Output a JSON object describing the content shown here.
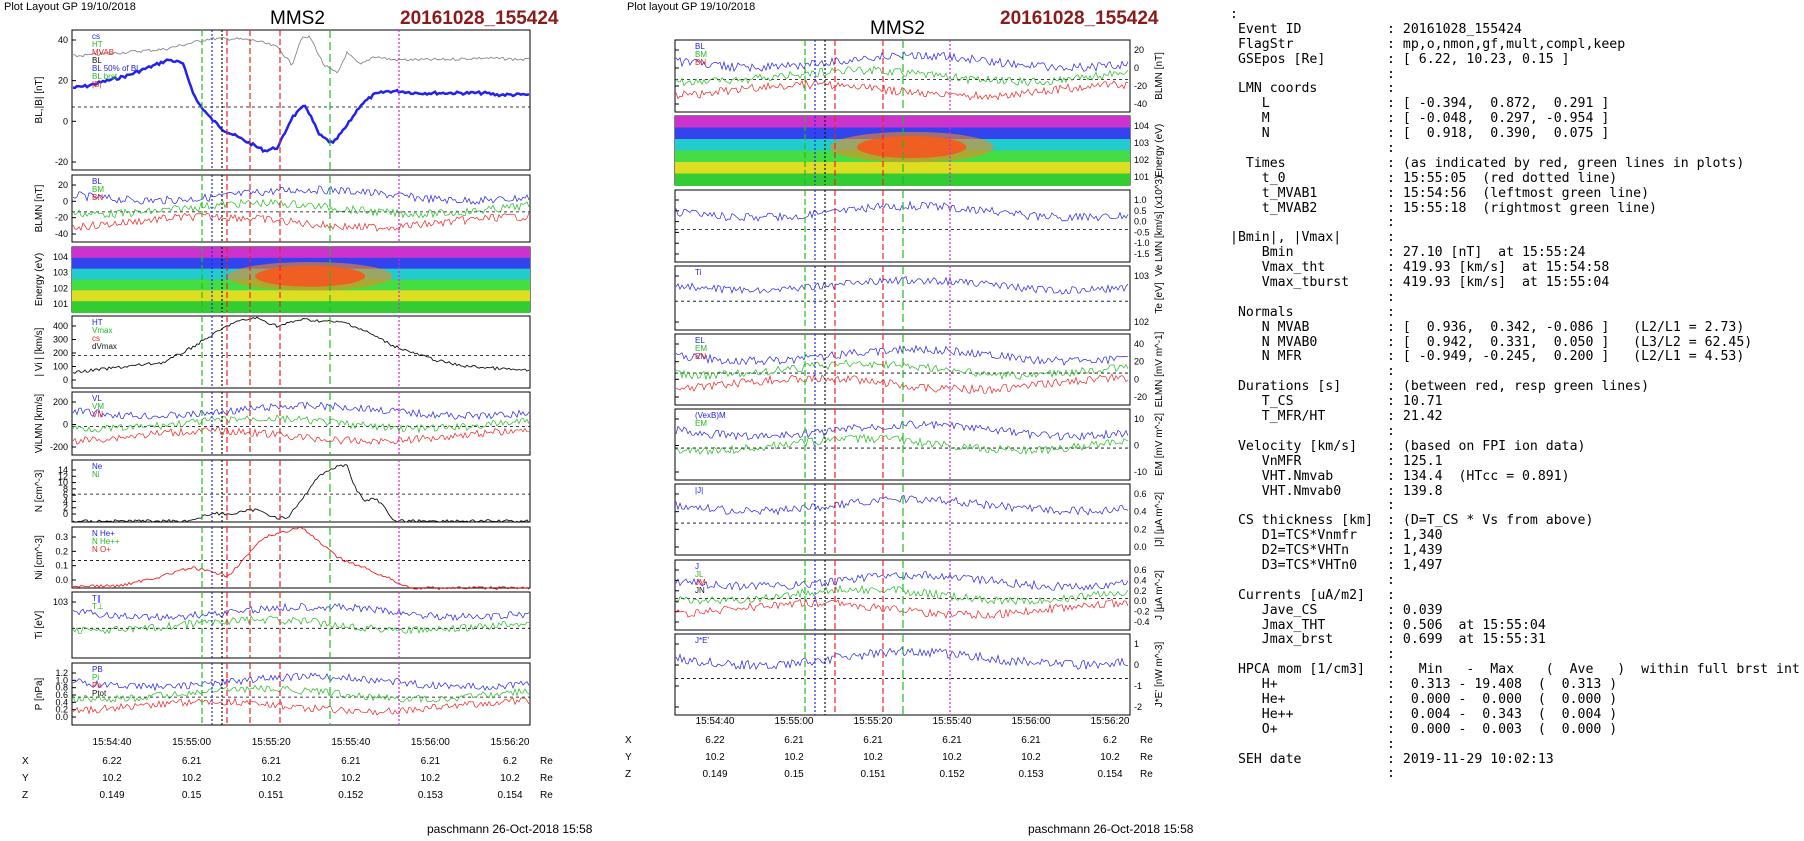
{
  "left_page": {
    "header": "Plot Layout GP 19/10/2018",
    "title": "MMS2",
    "event": "20161028_155424",
    "credit": "paschmann 26-Oct-2018 15:58"
  },
  "mid_page": {
    "header": "Plot layout GP 19/10/2018",
    "title": "MMS2",
    "event": "20161028_155424",
    "credit": "paschmann 26-Oct-2018 15:58"
  },
  "colors": {
    "blue": "#2222ee",
    "green": "#22bb22",
    "red": "#ee2222",
    "magenta": "#dd22dd",
    "black": "#111111",
    "gray": "#888888",
    "event_red": "#8b1a1a"
  },
  "time_ticks": [
    "15:54:40",
    "15:55:00",
    "15:55:20",
    "15:55:40",
    "15:56:00",
    "15:56:20"
  ],
  "positions": {
    "unit": "Re",
    "rows": [
      {
        "label": "X",
        "values": [
          "6.22",
          "6.21",
          "6.21",
          "6.21",
          "6.21",
          "6.2"
        ]
      },
      {
        "label": "Y",
        "values": [
          "10.2",
          "10.2",
          "10.2",
          "10.2",
          "10.2",
          "10.2"
        ]
      },
      {
        "label": "Z",
        "values": [
          "0.149",
          "0.15",
          "0.151",
          "0.152",
          "0.153",
          "0.154"
        ]
      }
    ]
  },
  "chart_data": [
    {
      "type": "line",
      "panel": "left-1",
      "ylabel": "BL,|B| [nT]",
      "ylim": [
        -35,
        45
      ],
      "yticks": [
        "40",
        "20",
        "0",
        "-20"
      ],
      "legend": [
        "cs",
        "HT",
        "MVAB",
        "BL",
        "BL 50% of BL",
        "BL brst",
        "|B|"
      ],
      "series": [
        {
          "name": "BL brst",
          "color": "blue",
          "x": [
            0,
            0.03,
            0.06,
            0.09,
            0.12,
            0.15,
            0.18,
            0.21,
            0.24,
            0.27,
            0.3,
            0.33,
            0.36,
            0.39,
            0.42,
            0.45,
            0.48,
            0.51,
            0.54,
            0.57,
            0.6,
            0.63,
            0.66,
            0.69,
            0.72,
            0.75,
            0.78,
            0.81,
            0.84,
            0.87,
            0.9,
            0.93,
            0.96,
            1.0
          ],
          "y": [
            12,
            13,
            15,
            17,
            19,
            22,
            25,
            28,
            26,
            5,
            -5,
            -12,
            -16,
            -20,
            -24,
            -22,
            -5,
            2,
            -15,
            -20,
            -10,
            2,
            8,
            10,
            10,
            9,
            9,
            9,
            9,
            9,
            9,
            8,
            8,
            8
          ]
        },
        {
          "name": "|B|",
          "color": "gray",
          "x": [
            0,
            0.1,
            0.2,
            0.3,
            0.35,
            0.4,
            0.45,
            0.48,
            0.5,
            0.52,
            0.55,
            0.58,
            0.6,
            0.63,
            0.66,
            0.7,
            0.8,
            0.9,
            1.0
          ],
          "y": [
            30,
            32,
            34,
            40,
            40,
            39,
            35,
            25,
            40,
            41,
            25,
            20,
            32,
            25,
            30,
            28,
            28,
            29,
            28
          ]
        }
      ]
    },
    {
      "type": "line",
      "panel": "left-2",
      "ylabel": "BLMN [nT]",
      "ylim": [
        -45,
        35
      ],
      "yticks": [
        "20",
        "0",
        "-20",
        "-40"
      ],
      "legend": [
        "BL",
        "BM",
        "BN"
      ]
    },
    {
      "type": "heatmap",
      "panel": "left-3",
      "ylabel": "Energy (eV)",
      "yticks": [
        "10^4",
        "10^3",
        "10^2",
        "10^1"
      ]
    },
    {
      "type": "line",
      "panel": "left-4",
      "ylabel": "| Vi | [km/s]",
      "ylim": [
        0,
        420
      ],
      "yticks": [
        "400",
        "300",
        "200",
        "100",
        "0"
      ],
      "legend": [
        "HT",
        "Vmax",
        "cs",
        "dVmax"
      ],
      "series": [
        {
          "name": "|Vi|",
          "color": "black",
          "x": [
            0,
            0.1,
            0.2,
            0.25,
            0.3,
            0.35,
            0.4,
            0.45,
            0.5,
            0.55,
            0.6,
            0.65,
            0.7,
            0.75,
            0.8,
            0.85,
            0.9,
            0.95,
            1.0
          ],
          "y": [
            90,
            120,
            150,
            220,
            300,
            380,
            410,
            360,
            400,
            390,
            380,
            320,
            250,
            200,
            160,
            130,
            120,
            110,
            100
          ]
        }
      ]
    },
    {
      "type": "line",
      "panel": "left-5",
      "ylabel": "ViLMN [km/s]",
      "ylim": [
        -230,
        280
      ],
      "yticks": [
        "200",
        "0",
        "-200"
      ],
      "legend": [
        "VL",
        "VM",
        "VN"
      ]
    },
    {
      "type": "line",
      "panel": "left-6",
      "ylabel": "N [cm^-3]",
      "ylim": [
        0,
        15
      ],
      "yticks": [
        "14",
        "12",
        "10",
        "8",
        "6",
        "4",
        "2",
        "0"
      ],
      "legend": [
        "Ne",
        "Ni"
      ],
      "series": [
        {
          "name": "Ni",
          "color": "black",
          "x": [
            0,
            0.25,
            0.28,
            0.3,
            0.35,
            0.4,
            0.45,
            0.47,
            0.5,
            0.53,
            0.55,
            0.57,
            0.6,
            0.62,
            0.64,
            0.66,
            0.68,
            0.7,
            1.0
          ],
          "y": [
            0.2,
            0.3,
            1,
            2,
            2,
            3,
            1,
            1,
            5,
            10,
            12,
            13,
            14,
            8,
            5,
            6,
            4,
            0.3,
            0.2
          ]
        }
      ]
    },
    {
      "type": "line",
      "panel": "left-7",
      "ylabel": "Ni [cm^-3]",
      "ylim": [
        0,
        0.3
      ],
      "yticks": [
        "0.3",
        "0.2",
        "0.1",
        "0.0"
      ],
      "legend": [
        "N He+",
        "N He++",
        "N O+"
      ],
      "series": [
        {
          "name": "N He++",
          "color": "red",
          "x": [
            0.1,
            0.18,
            0.26,
            0.34,
            0.42,
            0.5,
            0.58,
            0.66,
            0.74
          ],
          "y": [
            0.01,
            0.05,
            0.1,
            0.06,
            0.25,
            0.3,
            0.15,
            0.08,
            0.0
          ]
        }
      ]
    },
    {
      "type": "line",
      "panel": "left-8",
      "ylabel": "Ti [eV]",
      "yticks": [
        "10^3"
      ],
      "legend": [
        "T∥",
        "T⊥"
      ]
    },
    {
      "type": "line",
      "panel": "left-9",
      "ylabel": "P [nPa]",
      "ylim": [
        0,
        1.2
      ],
      "yticks": [
        "1.2",
        "1.0",
        "0.8",
        "0.6",
        "0.4",
        "0.2",
        "0.0"
      ],
      "legend": [
        "PB",
        "Pi",
        "Pe",
        "Ptot"
      ]
    },
    {
      "type": "line",
      "panel": "mid-1",
      "ylabel": "BLMN [nT]",
      "yticks": [
        "20",
        "0",
        "-20",
        "-40"
      ],
      "legend": [
        "BL",
        "BM",
        "BN"
      ]
    },
    {
      "type": "heatmap",
      "panel": "mid-2",
      "ylabel": "Energy (eV)",
      "yticks": [
        "10^4",
        "10^3",
        "10^2",
        "10^1"
      ]
    },
    {
      "type": "line",
      "panel": "mid-3",
      "ylabel": "Ve LMN [km/s] (x10^3)",
      "yticks": [
        "1.0",
        "0.5",
        "0.0",
        "-0.5",
        "-1.0",
        "-1.5"
      ]
    },
    {
      "type": "line",
      "panel": "mid-4",
      "ylabel": "Te [eV]",
      "yticks": [
        "10^3",
        "10^2"
      ],
      "legend": [
        "Ti"
      ]
    },
    {
      "type": "line",
      "panel": "mid-5",
      "ylabel": "ELMN [mV m^-1]",
      "yticks": [
        "40",
        "20",
        "0",
        "-20"
      ],
      "legend": [
        "EL",
        "EM",
        "EN"
      ]
    },
    {
      "type": "line",
      "panel": "mid-6",
      "ylabel": "EM [mV m^-2]",
      "yticks": [
        "10",
        "0",
        "-10"
      ],
      "legend": [
        "(VexB)M",
        "EM"
      ]
    },
    {
      "type": "line",
      "panel": "mid-7",
      "ylabel": "|J| [μA m^-2]",
      "yticks": [
        "0.6",
        "0.4",
        "0.2",
        "0.0"
      ],
      "legend": [
        "|J|"
      ]
    },
    {
      "type": "line",
      "panel": "mid-8",
      "ylabel": "J [μA m^-2]",
      "yticks": [
        "0.6",
        "0.4",
        "0.2",
        "0.0",
        "-0.2",
        "-0.4"
      ],
      "legend": [
        "J",
        "JL",
        "JM",
        "JN"
      ]
    },
    {
      "type": "line",
      "panel": "mid-9",
      "ylabel": "J*E' [nW m^-3]",
      "yticks": [
        "1",
        "0",
        "-1",
        "-2"
      ],
      "legend": [
        "J*E'"
      ]
    }
  ],
  "info": {
    "lines": [
      {
        "lab": ":",
        "val": ""
      },
      {
        "lab": " Event ID",
        "val": ": 20161028_155424"
      },
      {
        "lab": " FlagStr",
        "val": ": mp,o,nmon,gf,mult,compl,keep"
      },
      {
        "lab": " GSEpos [Re]",
        "val": ": [ 6.22, 10.23, 0.15 ]"
      },
      {
        "lab": "",
        "val": ":"
      },
      {
        "lab": " LMN coords",
        "val": ":"
      },
      {
        "lab": "    L",
        "val": ": [ -0.394,  0.872,  0.291 ]"
      },
      {
        "lab": "    M",
        "val": ": [ -0.048,  0.297, -0.954 ]"
      },
      {
        "lab": "    N",
        "val": ": [  0.918,  0.390,  0.075 ]"
      },
      {
        "lab": "",
        "val": ":"
      },
      {
        "lab": "  Times",
        "val": ": (as indicated by red, green lines in plots)"
      },
      {
        "lab": "    t_0",
        "val": ": 15:55:05  (red dotted line)"
      },
      {
        "lab": "    t_MVAB1",
        "val": ": 15:54:56  (leftmost green line)"
      },
      {
        "lab": "    t_MVAB2",
        "val": ": 15:55:18  (rightmost green line)"
      },
      {
        "lab": "",
        "val": ":"
      },
      {
        "lab": "|Bmin|, |Vmax|",
        "val": ":"
      },
      {
        "lab": "    Bmin",
        "val": ": 27.10 [nT]  at 15:55:24"
      },
      {
        "lab": "    Vmax_tht",
        "val": ": 419.93 [km/s]  at 15:54:58"
      },
      {
        "lab": "    Vmax_tburst",
        "val": ": 419.93 [km/s]  at 15:55:04"
      },
      {
        "lab": "",
        "val": ":"
      },
      {
        "lab": " Normals",
        "val": ":"
      },
      {
        "lab": "    N MVAB",
        "val": ": [  0.936,  0.342, -0.086 ]   (L2/L1 = 2.73)"
      },
      {
        "lab": "    N MVAB0",
        "val": ": [  0.942,  0.331,  0.050 ]   (L3/L2 = 62.45)"
      },
      {
        "lab": "    N MFR",
        "val": ": [ -0.949, -0.245,  0.200 ]   (L2/L1 = 4.53)"
      },
      {
        "lab": "",
        "val": ":"
      },
      {
        "lab": " Durations [s]",
        "val": ": (between red, resp green lines)"
      },
      {
        "lab": "    T_CS",
        "val": ": 10.71"
      },
      {
        "lab": "    T_MFR/HT",
        "val": ": 21.42"
      },
      {
        "lab": "",
        "val": ":"
      },
      {
        "lab": " Velocity [km/s]",
        "val": ": (based on FPI ion data)"
      },
      {
        "lab": "    VnMFR",
        "val": ": 125.1"
      },
      {
        "lab": "    VHT.Nmvab",
        "val": ": 134.4  (HTcc = 0.891)"
      },
      {
        "lab": "    VHT.Nmvab0",
        "val": ": 139.8"
      },
      {
        "lab": "",
        "val": ":"
      },
      {
        "lab": " CS thickness [km]",
        "val": ": (D=T_CS * Vs from above)"
      },
      {
        "lab": "    D1=TCS*Vnmfr",
        "val": ": 1,340"
      },
      {
        "lab": "    D2=TCS*VHTn",
        "val": ": 1,439"
      },
      {
        "lab": "    D3=TCS*VHTn0",
        "val": ": 1,497"
      },
      {
        "lab": "",
        "val": ":"
      },
      {
        "lab": " Currents [uA/m2]",
        "val": ":"
      },
      {
        "lab": "    Jave_CS",
        "val": ": 0.039"
      },
      {
        "lab": "    Jmax_THT",
        "val": ": 0.506  at 15:55:04"
      },
      {
        "lab": "    Jmax_brst",
        "val": ": 0.699  at 15:55:31"
      },
      {
        "lab": "",
        "val": ":"
      },
      {
        "lab": " HPCA mom [1/cm3]",
        "val": ":   Min   -  Max    (  Ave   )  within full brst int"
      },
      {
        "lab": "    H+",
        "val": ":  0.313 - 19.408  (  0.313 )"
      },
      {
        "lab": "    He+",
        "val": ":  0.000 -  0.000  (  0.000 )"
      },
      {
        "lab": "    He++",
        "val": ":  0.004 -  0.343  (  0.004 )"
      },
      {
        "lab": "    O+",
        "val": ":  0.000 -  0.003  (  0.000 )"
      },
      {
        "lab": "",
        "val": ":"
      },
      {
        "lab": " SEH date",
        "val": ": 2019-11-29 10:02:13"
      },
      {
        "lab": "",
        "val": ":"
      }
    ]
  }
}
